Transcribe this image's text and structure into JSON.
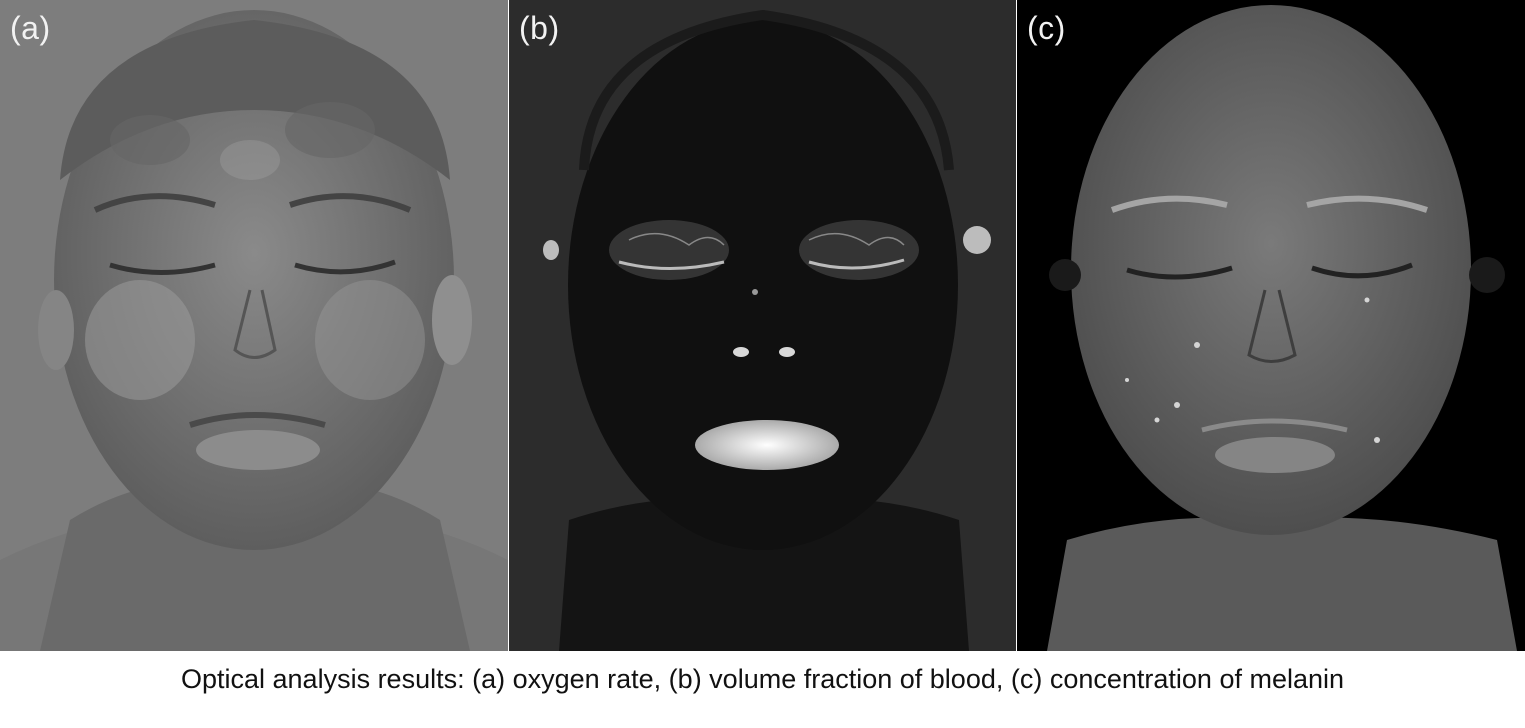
{
  "figure": {
    "panels": [
      {
        "label": "(a)",
        "description_icon": "face-oxygen-map",
        "background": "#7d7d7d",
        "face_tone": "#6e6e6e"
      },
      {
        "label": "(b)",
        "description_icon": "face-blood-map",
        "background": "#2c2c2c",
        "face_tone": "#111111"
      },
      {
        "label": "(c)",
        "description_icon": "face-melanin-map",
        "background": "#000000",
        "face_tone": "#6a6a6a"
      }
    ],
    "caption": "Optical analysis results: (a) oxygen rate, (b) volume fraction of blood, (c) concentration of melanin"
  }
}
